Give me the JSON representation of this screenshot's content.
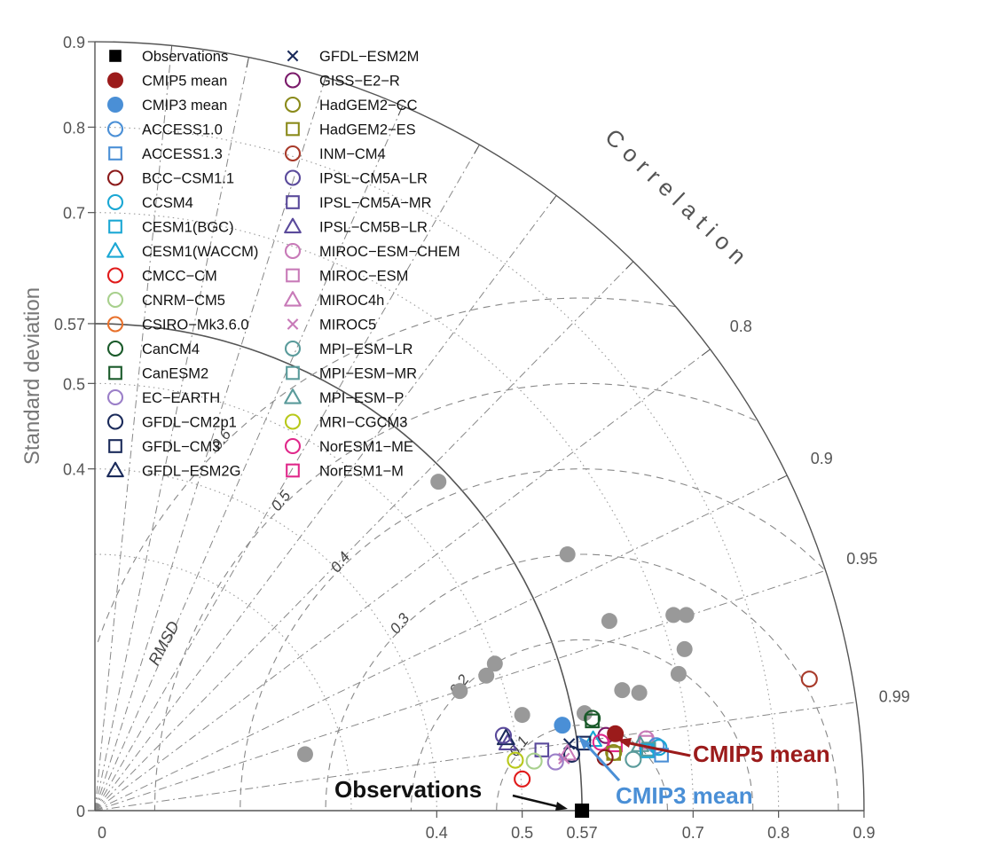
{
  "chart_data": {
    "type": "scatter",
    "subtype": "taylor-diagram",
    "ylabel": "Standard deviation",
    "correlation_label": "Correlation",
    "rmsd_label": "RMSD",
    "std_range": [
      0,
      0.9
    ],
    "std_ticks_left": [
      "0.9",
      "0.8",
      "0.7",
      "0.57",
      "0.5",
      "0.4",
      "0"
    ],
    "std_ticks_bottom": [
      "0",
      "0.4",
      "0.5",
      "0.57",
      "0.7",
      "0.8",
      "0.9"
    ],
    "reference_std": 0.57,
    "correlation_ticks": [
      {
        "value": 0.8,
        "label": "0.8"
      },
      {
        "value": 0.9,
        "label": "0.9"
      },
      {
        "value": 0.95,
        "label": "0.95"
      },
      {
        "value": 0.99,
        "label": "0.99"
      }
    ],
    "rmsd_ticks": [
      {
        "value": 0.1,
        "label": "0.1"
      },
      {
        "value": 0.2,
        "label": "0.2"
      },
      {
        "value": 0.3,
        "label": "0.3"
      },
      {
        "value": 0.4,
        "label": "0.4"
      },
      {
        "value": 0.5,
        "label": "0.5"
      },
      {
        "value": 0.6,
        "label": "0.6"
      }
    ],
    "legend": [
      {
        "name": "Observations",
        "marker": "filled-square",
        "color": "#000000"
      },
      {
        "name": "CMIP5 mean",
        "marker": "filled-circle",
        "color": "#9b1b1b"
      },
      {
        "name": "CMIP3 mean",
        "marker": "filled-circle",
        "color": "#4a8fd6"
      },
      {
        "name": "ACCESS1.0",
        "marker": "circle",
        "color": "#4a8fd6"
      },
      {
        "name": "ACCESS1.3",
        "marker": "square",
        "color": "#4a8fd6"
      },
      {
        "name": "BCC−CSM1.1",
        "marker": "circle",
        "color": "#8b1a1a"
      },
      {
        "name": "CCSM4",
        "marker": "circle",
        "color": "#1aa7d4"
      },
      {
        "name": "CESM1(BGC)",
        "marker": "square",
        "color": "#1aa7d4"
      },
      {
        "name": "CESM1(WACCM)",
        "marker": "triangle",
        "color": "#1aa7d4"
      },
      {
        "name": "CMCC−CM",
        "marker": "circle",
        "color": "#e01a1a"
      },
      {
        "name": "CNRM−CM5",
        "marker": "circle",
        "color": "#a8d08d"
      },
      {
        "name": "CSIRO−Mk3.6.0",
        "marker": "circle",
        "color": "#e8702a"
      },
      {
        "name": "CanCM4",
        "marker": "circle",
        "color": "#1a5a2a"
      },
      {
        "name": "CanESM2",
        "marker": "square",
        "color": "#1a5a2a"
      },
      {
        "name": "EC−EARTH",
        "marker": "circle",
        "color": "#9b7fc8"
      },
      {
        "name": "GFDL−CM2p1",
        "marker": "circle",
        "color": "#1a2a5a"
      },
      {
        "name": "GFDL−CM3",
        "marker": "square",
        "color": "#1a2a5a"
      },
      {
        "name": "GFDL−ESM2G",
        "marker": "triangle",
        "color": "#1a2a5a"
      },
      {
        "name": "GFDL−ESM2M",
        "marker": "x",
        "color": "#1a2a5a"
      },
      {
        "name": "GISS−E2−R",
        "marker": "circle",
        "color": "#7a1a6a"
      },
      {
        "name": "HadGEM2−CC",
        "marker": "circle",
        "color": "#8a8a1a"
      },
      {
        "name": "HadGEM2−ES",
        "marker": "square",
        "color": "#8a8a1a"
      },
      {
        "name": "INM−CM4",
        "marker": "circle",
        "color": "#a83a2a"
      },
      {
        "name": "IPSL−CM5A−LR",
        "marker": "circle",
        "color": "#5a4a9b"
      },
      {
        "name": "IPSL−CM5A−MR",
        "marker": "square",
        "color": "#5a4a9b"
      },
      {
        "name": "IPSL−CM5B−LR",
        "marker": "triangle",
        "color": "#5a4a9b"
      },
      {
        "name": "MIROC−ESM−CHEM",
        "marker": "circle",
        "color": "#c87ab8"
      },
      {
        "name": "MIROC−ESM",
        "marker": "square",
        "color": "#c87ab8"
      },
      {
        "name": "MIROC4h",
        "marker": "triangle",
        "color": "#c87ab8"
      },
      {
        "name": "MIROC5",
        "marker": "x",
        "color": "#c87ab8"
      },
      {
        "name": "MPI−ESM−LR",
        "marker": "circle",
        "color": "#5a9b9b"
      },
      {
        "name": "MPI−ESM−MR",
        "marker": "square",
        "color": "#5a9b9b"
      },
      {
        "name": "MPI−ESM−P",
        "marker": "triangle",
        "color": "#5a9b9b"
      },
      {
        "name": "MRI−CGCM3",
        "marker": "circle",
        "color": "#b8c81a"
      },
      {
        "name": "NorESM1−ME",
        "marker": "circle",
        "color": "#e0288a"
      },
      {
        "name": "NorESM1−M",
        "marker": "square",
        "color": "#e0288a"
      }
    ],
    "model_points": [
      {
        "name": "INM−CM4",
        "x": 0.836,
        "y": 0.154
      },
      {
        "name": "CanCM4",
        "x": 0.582,
        "y": 0.108
      },
      {
        "name": "CanESM2",
        "x": 0.582,
        "y": 0.105
      },
      {
        "name": "GISS−E2−R",
        "x": 0.598,
        "y": 0.088
      },
      {
        "name": "MIROC−ESM−CHEM",
        "x": 0.645,
        "y": 0.084
      },
      {
        "name": "MIROC−ESM",
        "x": 0.645,
        "y": 0.08
      },
      {
        "name": "CESM1(WACCM)",
        "x": 0.583,
        "y": 0.083
      },
      {
        "name": "GFDL−CM3",
        "x": 0.572,
        "y": 0.079
      },
      {
        "name": "GFDL−ESM2M",
        "x": 0.555,
        "y": 0.078
      },
      {
        "name": "NorESM1−ME",
        "x": 0.592,
        "y": 0.08
      },
      {
        "name": "NorESM1−M",
        "x": 0.609,
        "y": 0.077
      },
      {
        "name": "ACCESS1.0",
        "x": 0.657,
        "y": 0.076
      },
      {
        "name": "CCSM4",
        "x": 0.66,
        "y": 0.074
      },
      {
        "name": "MPI−ESM−P",
        "x": 0.638,
        "y": 0.077
      },
      {
        "name": "MPI−ESM−MR",
        "x": 0.648,
        "y": 0.072
      },
      {
        "name": "CESM1(BGC)",
        "x": 0.646,
        "y": 0.07
      },
      {
        "name": "ACCESS1.3",
        "x": 0.663,
        "y": 0.065
      },
      {
        "name": "MPI−ESM−LR",
        "x": 0.63,
        "y": 0.06
      },
      {
        "name": "HadGEM2−CC",
        "x": 0.607,
        "y": 0.068
      },
      {
        "name": "HadGEM2−ES",
        "x": 0.607,
        "y": 0.067
      },
      {
        "name": "BCC−CSM1.1",
        "x": 0.597,
        "y": 0.062
      },
      {
        "name": "GFDL−CM2p1",
        "x": 0.558,
        "y": 0.066
      },
      {
        "name": "MIROC5",
        "x": 0.549,
        "y": 0.061
      },
      {
        "name": "MIROC4h",
        "x": 0.553,
        "y": 0.067
      },
      {
        "name": "EC−EARTH",
        "x": 0.539,
        "y": 0.057
      },
      {
        "name": "IPSL−CM5A−MR",
        "x": 0.523,
        "y": 0.071
      },
      {
        "name": "IPSL−CM5B−LR",
        "x": 0.483,
        "y": 0.079
      },
      {
        "name": "GFDL−ESM2G",
        "x": 0.481,
        "y": 0.085
      },
      {
        "name": "IPSL−CM5A−LR",
        "x": 0.478,
        "y": 0.088
      },
      {
        "name": "CNRM−CM5",
        "x": 0.514,
        "y": 0.058
      },
      {
        "name": "MRI−CGCM3",
        "x": 0.492,
        "y": 0.059
      },
      {
        "name": "CMCC−CM",
        "x": 0.5,
        "y": 0.037
      }
    ],
    "grey_points": [
      {
        "x": 0.402,
        "y": 0.385
      },
      {
        "x": 0.553,
        "y": 0.3
      },
      {
        "x": 0.602,
        "y": 0.222
      },
      {
        "x": 0.677,
        "y": 0.229
      },
      {
        "x": 0.692,
        "y": 0.229
      },
      {
        "x": 0.69,
        "y": 0.189
      },
      {
        "x": 0.683,
        "y": 0.16
      },
      {
        "x": 0.468,
        "y": 0.172
      },
      {
        "x": 0.458,
        "y": 0.158
      },
      {
        "x": 0.427,
        "y": 0.14
      },
      {
        "x": 0.637,
        "y": 0.138
      },
      {
        "x": 0.617,
        "y": 0.141
      },
      {
        "x": 0.5,
        "y": 0.112
      },
      {
        "x": 0.573,
        "y": 0.114
      },
      {
        "x": 0.246,
        "y": 0.066
      }
    ],
    "means": [
      {
        "name": "CMIP5 mean",
        "x": 0.609,
        "y": 0.09,
        "color": "#9b1b1b"
      },
      {
        "name": "CMIP3 mean",
        "x": 0.547,
        "y": 0.1,
        "color": "#4a8fd6"
      },
      {
        "name": "Observations",
        "x": 0.57,
        "y": 0.0,
        "color": "#000000"
      }
    ],
    "annotations": [
      {
        "text": "CMIP5 mean",
        "color": "#9b1b1b"
      },
      {
        "text": "CMIP3 mean",
        "color": "#4a8fd6"
      },
      {
        "text": "Observations",
        "color": "#111111"
      }
    ]
  }
}
